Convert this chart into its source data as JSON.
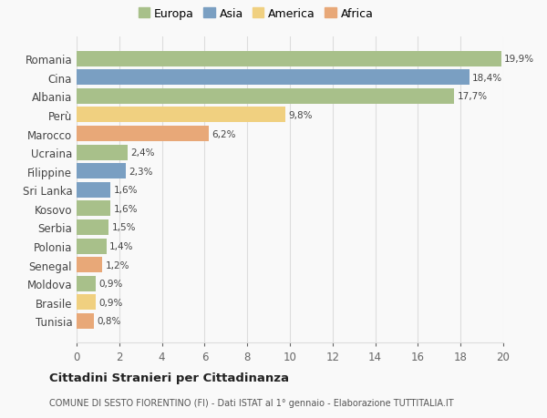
{
  "countries": [
    "Romania",
    "Cina",
    "Albania",
    "Perù",
    "Marocco",
    "Ucraina",
    "Filippine",
    "Sri Lanka",
    "Kosovo",
    "Serbia",
    "Polonia",
    "Senegal",
    "Moldova",
    "Brasile",
    "Tunisia"
  ],
  "values": [
    19.9,
    18.4,
    17.7,
    9.8,
    6.2,
    2.4,
    2.3,
    1.6,
    1.6,
    1.5,
    1.4,
    1.2,
    0.9,
    0.9,
    0.8
  ],
  "labels": [
    "19,9%",
    "18,4%",
    "17,7%",
    "9,8%",
    "6,2%",
    "2,4%",
    "2,3%",
    "1,6%",
    "1,6%",
    "1,5%",
    "1,4%",
    "1,2%",
    "0,9%",
    "0,9%",
    "0,8%"
  ],
  "continents": [
    "Europa",
    "Asia",
    "Europa",
    "America",
    "Africa",
    "Europa",
    "Asia",
    "Asia",
    "Europa",
    "Europa",
    "Europa",
    "Africa",
    "Europa",
    "America",
    "Africa"
  ],
  "colors": {
    "Europa": "#a8c08a",
    "Asia": "#7a9fc2",
    "America": "#f0d080",
    "Africa": "#e8a878"
  },
  "legend_order": [
    "Europa",
    "Asia",
    "America",
    "Africa"
  ],
  "xlim": [
    0,
    20
  ],
  "xticks": [
    0,
    2,
    4,
    6,
    8,
    10,
    12,
    14,
    16,
    18,
    20
  ],
  "title": "Cittadini Stranieri per Cittadinanza",
  "subtitle": "COMUNE DI SESTO FIORENTINO (FI) - Dati ISTAT al 1° gennaio - Elaborazione TUTTITALIA.IT",
  "background_color": "#f9f9f9",
  "grid_color": "#dddddd"
}
